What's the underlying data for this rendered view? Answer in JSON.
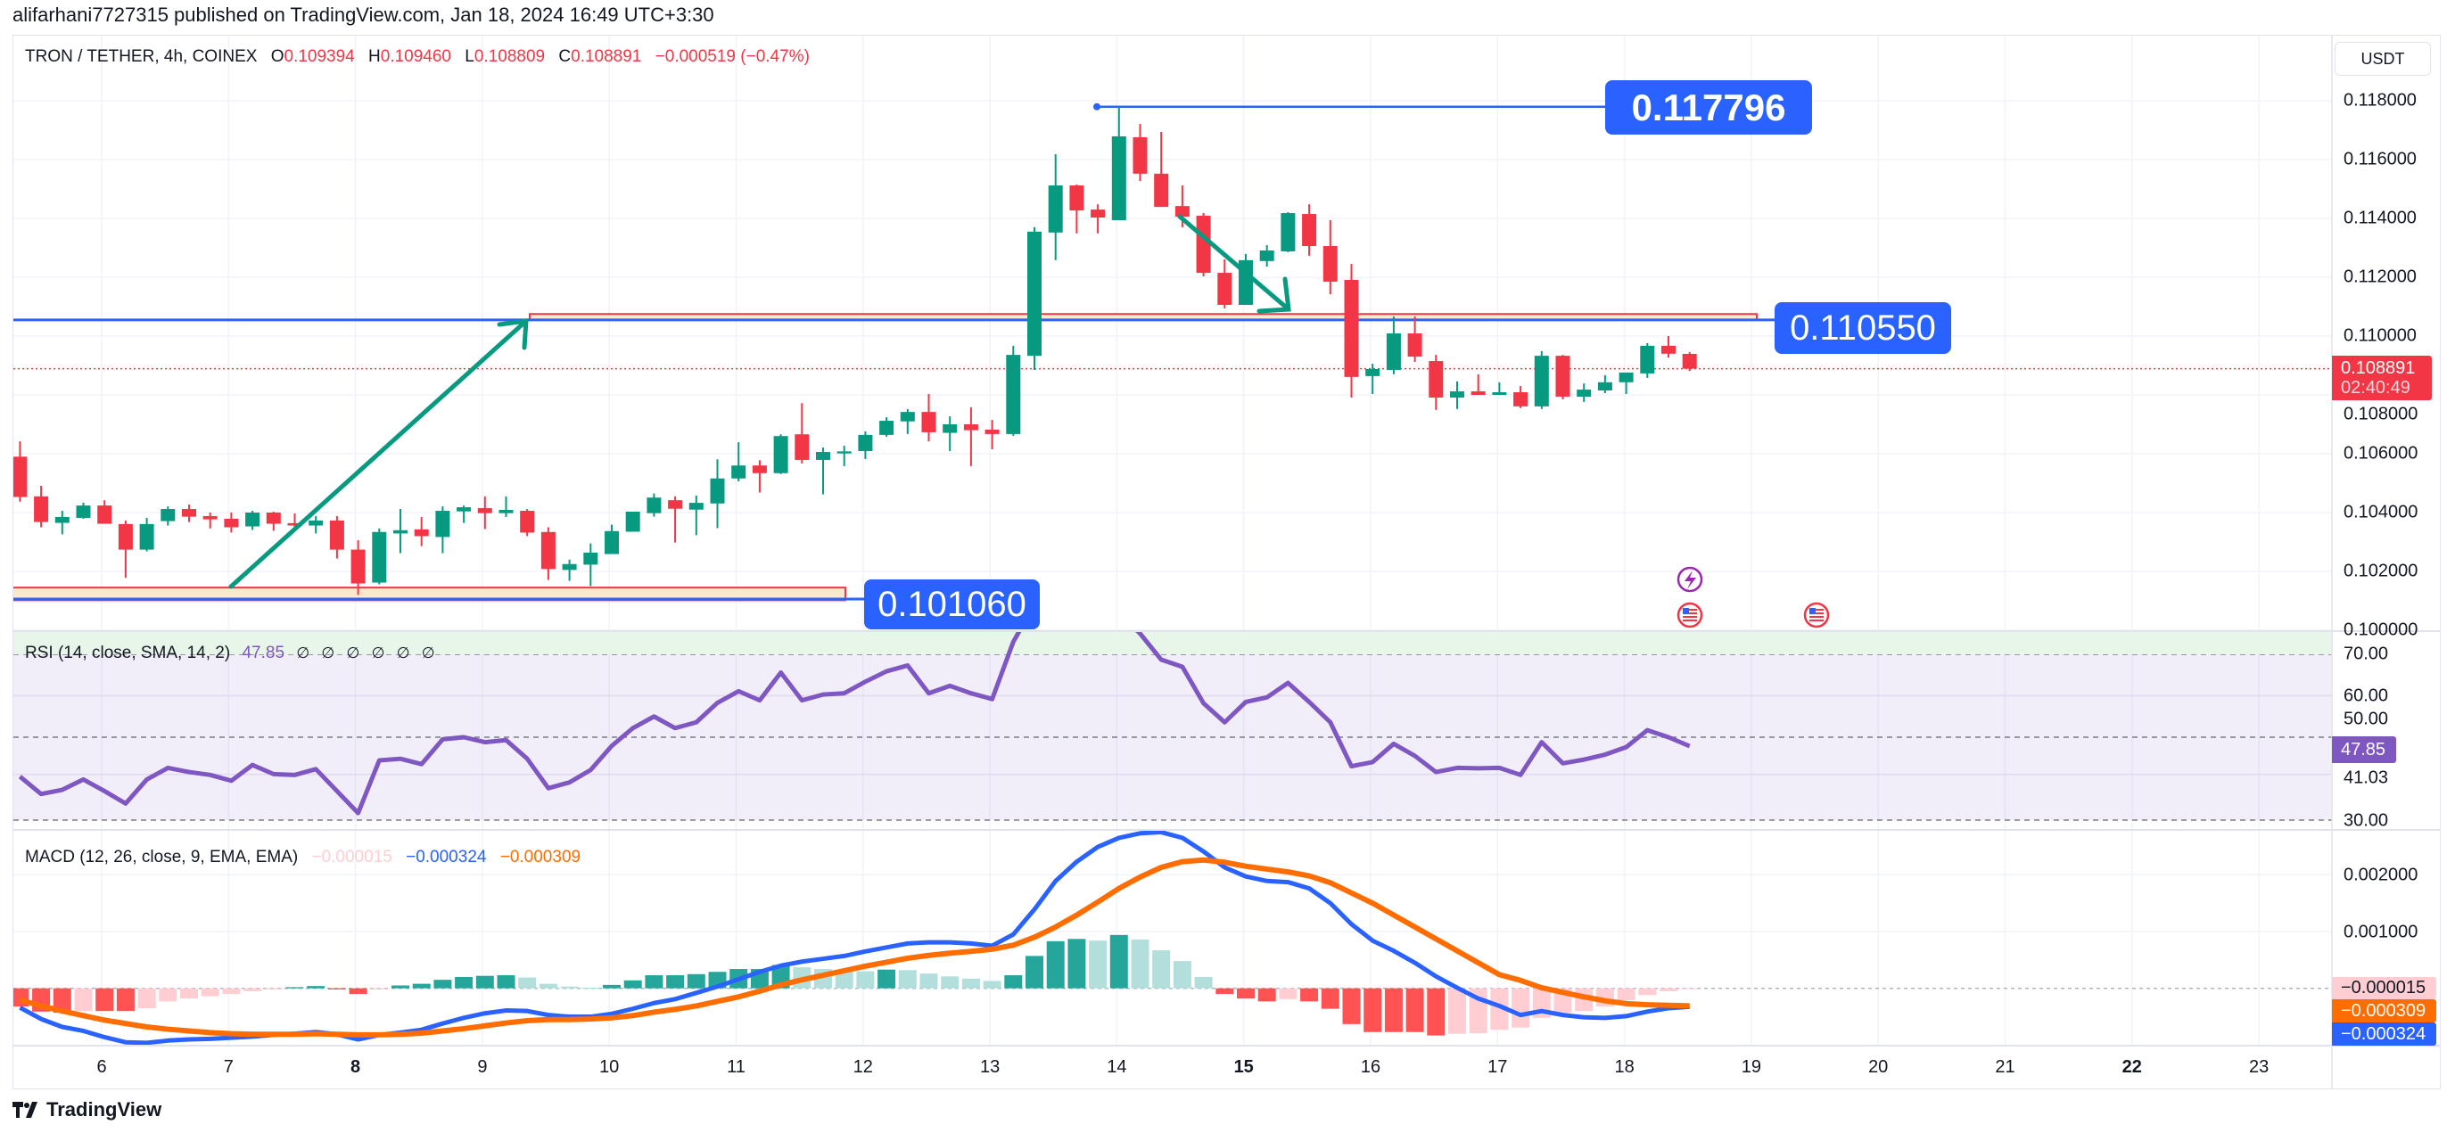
{
  "header": {
    "publisher": "alifarhani7727315 published on TradingView.com, Jan 18, 2024 16:49 UTC+3:30"
  },
  "legend": {
    "symbol": "TRON / TETHER, 4h, COINEX",
    "o_label": "O",
    "o": "0.109394",
    "h_label": "H",
    "h": "0.109460",
    "l_label": "L",
    "l": "0.108809",
    "c_label": "C",
    "c": "0.108891",
    "change": "−0.000519 (−0.47%)"
  },
  "currency_button": "USDT",
  "current_price": {
    "price": "0.108891",
    "countdown": "02:40:49",
    "color": "#f23645"
  },
  "annotations": {
    "high_label": "0.117796",
    "resistance_label": "0.110550",
    "support_label": "0.101060",
    "line_color": "#2962ff",
    "zone_fill": "#ffe9cc",
    "zone_border": "#f23645",
    "arrow_color": "#089981"
  },
  "rsi_legend": {
    "title": "RSI (14, close, SMA, 14, 2)",
    "value": "47.85",
    "na": [
      "∅",
      "∅",
      "∅",
      "∅",
      "∅",
      "∅"
    ]
  },
  "rsi_axis": {
    "ticks": [
      "70.00",
      "60.00",
      "50.00",
      "41.03",
      "30.00"
    ],
    "badge": "47.85",
    "badge_color": "#7e57c2"
  },
  "macd_legend": {
    "title": "MACD (12, 26, close, 9, EMA, EMA)",
    "hist": "−0.000015",
    "macd": "−0.000324",
    "signal": "−0.000309"
  },
  "macd_axis": {
    "ticks": [
      "0.002000",
      "0.001000"
    ],
    "badges": [
      "−0.000015",
      "−0.000309",
      "−0.000324"
    ]
  },
  "footer": {
    "brand": "TradingView"
  },
  "chart_data": {
    "type": "candlestick",
    "title": "TRON / TETHER, 4h, COINEX",
    "colors": {
      "up": "#089981",
      "down": "#f23645",
      "rsi": "#7e57c2",
      "macd": "#2962ff",
      "signal": "#ff6d00"
    },
    "price_axis": {
      "range": [
        0.0995,
        0.1192
      ],
      "ticks": [
        "0.118000",
        "0.116000",
        "0.114000",
        "0.112000",
        "0.110000",
        "0.108000",
        "0.106000",
        "0.104000",
        "0.102000",
        "0.100000"
      ]
    },
    "x_axis": {
      "labels": [
        {
          "day": 6,
          "text": "6"
        },
        {
          "day": 7,
          "text": "7"
        },
        {
          "day": 8,
          "text": "8",
          "emphasis": true
        },
        {
          "day": 9,
          "text": "9"
        },
        {
          "day": 10,
          "text": "10"
        },
        {
          "day": 11,
          "text": "11"
        },
        {
          "day": 12,
          "text": "12"
        },
        {
          "day": 13,
          "text": "13"
        },
        {
          "day": 14,
          "text": "14"
        },
        {
          "day": 15,
          "text": "15",
          "emphasis": true
        },
        {
          "day": 16,
          "text": "16"
        },
        {
          "day": 17,
          "text": "17"
        },
        {
          "day": 18,
          "text": "18"
        },
        {
          "day": 19,
          "text": "19"
        },
        {
          "day": 20,
          "text": "20"
        },
        {
          "day": 21,
          "text": "21"
        },
        {
          "day": 22,
          "text": "22",
          "emphasis": true
        },
        {
          "day": 23,
          "text": "23"
        }
      ]
    },
    "ohlc": [
      [
        0.1059,
        0.10642,
        0.10437,
        0.10453
      ],
      [
        0.10455,
        0.10491,
        0.1035,
        0.10368
      ],
      [
        0.10365,
        0.10406,
        0.10326,
        0.10385
      ],
      [
        0.10382,
        0.10434,
        0.10379,
        0.10424
      ],
      [
        0.10424,
        0.10442,
        0.10362,
        0.10362
      ],
      [
        0.10361,
        0.10373,
        0.10178,
        0.10274
      ],
      [
        0.10274,
        0.10382,
        0.10268,
        0.10361
      ],
      [
        0.10371,
        0.10421,
        0.10356,
        0.10412
      ],
      [
        0.10412,
        0.10427,
        0.10368,
        0.10386
      ],
      [
        0.10388,
        0.104,
        0.10346,
        0.10377
      ],
      [
        0.10379,
        0.104,
        0.10332,
        0.1035
      ],
      [
        0.10353,
        0.10406,
        0.10341,
        0.104
      ],
      [
        0.104,
        0.10403,
        0.10338,
        0.10362
      ],
      [
        0.10364,
        0.10397,
        0.10341,
        0.10356
      ],
      [
        0.10356,
        0.10388,
        0.10329,
        0.10373
      ],
      [
        0.10373,
        0.10388,
        0.10244,
        0.10274
      ],
      [
        0.10274,
        0.10306,
        0.1012,
        0.10159
      ],
      [
        0.10162,
        0.10346,
        0.10156,
        0.10334
      ],
      [
        0.10329,
        0.10412,
        0.10262,
        0.1034
      ],
      [
        0.10343,
        0.10385,
        0.10286,
        0.1032
      ],
      [
        0.10317,
        0.10421,
        0.10262,
        0.10406
      ],
      [
        0.10404,
        0.10424,
        0.10365,
        0.10418
      ],
      [
        0.10415,
        0.10455,
        0.10344,
        0.10398
      ],
      [
        0.10398,
        0.10455,
        0.10385,
        0.10409
      ],
      [
        0.10406,
        0.10412,
        0.1032,
        0.10332
      ],
      [
        0.10334,
        0.1035,
        0.10171,
        0.10208
      ],
      [
        0.10205,
        0.1024,
        0.10168,
        0.10225
      ],
      [
        0.10223,
        0.10295,
        0.1015,
        0.10264
      ],
      [
        0.10259,
        0.10359,
        0.10259,
        0.10337
      ],
      [
        0.10335,
        0.10403,
        0.10335,
        0.10403
      ],
      [
        0.10398,
        0.10465,
        0.10386,
        0.10451
      ],
      [
        0.10442,
        0.10455,
        0.10298,
        0.10413
      ],
      [
        0.1041,
        0.10458,
        0.10323,
        0.10433
      ],
      [
        0.10431,
        0.10581,
        0.10347,
        0.10516
      ],
      [
        0.10516,
        0.10639,
        0.10506,
        0.1056
      ],
      [
        0.1056,
        0.10578,
        0.10468,
        0.10534
      ],
      [
        0.10534,
        0.10666,
        0.10531,
        0.1066
      ],
      [
        0.10666,
        0.10772,
        0.10567,
        0.10579
      ],
      [
        0.10579,
        0.10621,
        0.10462,
        0.10606
      ],
      [
        0.10601,
        0.10627,
        0.10558,
        0.10608
      ],
      [
        0.10609,
        0.10676,
        0.10582,
        0.10664
      ],
      [
        0.10664,
        0.10724,
        0.10658,
        0.10712
      ],
      [
        0.1071,
        0.10752,
        0.10667,
        0.10742
      ],
      [
        0.10742,
        0.10803,
        0.10642,
        0.10673
      ],
      [
        0.10671,
        0.10727,
        0.10609,
        0.107
      ],
      [
        0.107,
        0.10758,
        0.10558,
        0.1068
      ],
      [
        0.10682,
        0.10715,
        0.10615,
        0.10667
      ],
      [
        0.10667,
        0.10967,
        0.10661,
        0.10936
      ],
      [
        0.10933,
        0.1137,
        0.10885,
        0.11355
      ],
      [
        0.11352,
        0.11618,
        0.11258,
        0.11512
      ],
      [
        0.11512,
        0.11515,
        0.11349,
        0.11427
      ],
      [
        0.1143,
        0.11448,
        0.11349,
        0.11403
      ],
      [
        0.11394,
        0.117796,
        0.11394,
        0.11679
      ],
      [
        0.11676,
        0.11721,
        0.11527,
        0.11552
      ],
      [
        0.11552,
        0.11694,
        0.11439,
        0.11439
      ],
      [
        0.11442,
        0.11512,
        0.1137,
        0.11406
      ],
      [
        0.11409,
        0.11418,
        0.11203,
        0.11215
      ],
      [
        0.11215,
        0.11261,
        0.11094,
        0.11106
      ],
      [
        0.11106,
        0.11279,
        0.11106,
        0.11258
      ],
      [
        0.11255,
        0.11309,
        0.11236,
        0.11291
      ],
      [
        0.11288,
        0.11421,
        0.11285,
        0.11418
      ],
      [
        0.11415,
        0.11448,
        0.11273,
        0.11306
      ],
      [
        0.11306,
        0.11394,
        0.11142,
        0.11185
      ],
      [
        0.11191,
        0.11245,
        0.10791,
        0.10861
      ],
      [
        0.10864,
        0.10906,
        0.10803,
        0.10888
      ],
      [
        0.10885,
        0.11067,
        0.1087,
        0.11009
      ],
      [
        0.11009,
        0.11067,
        0.10912,
        0.1093
      ],
      [
        0.10915,
        0.10936,
        0.10749,
        0.10791
      ],
      [
        0.10791,
        0.10846,
        0.10752,
        0.10812
      ],
      [
        0.10812,
        0.1087,
        0.108,
        0.108
      ],
      [
        0.108,
        0.10843,
        0.108,
        0.10809
      ],
      [
        0.10809,
        0.1083,
        0.10755,
        0.10761
      ],
      [
        0.10761,
        0.10949,
        0.10752,
        0.10933
      ],
      [
        0.10933,
        0.10936,
        0.10785,
        0.10794
      ],
      [
        0.10794,
        0.10839,
        0.10776,
        0.10818
      ],
      [
        0.10815,
        0.10867,
        0.10806,
        0.10843
      ],
      [
        0.10843,
        0.10876,
        0.10803,
        0.10876
      ],
      [
        0.10873,
        0.10976,
        0.10858,
        0.10967
      ],
      [
        0.10967,
        0.11,
        0.10927,
        0.1094
      ],
      [
        0.109394,
        0.10946,
        0.108809,
        0.108891
      ]
    ],
    "levels": {
      "high": 0.117796,
      "resistance": 0.11055,
      "support": 0.10106,
      "current": 0.108891,
      "resistance_zone": [
        0.11055,
        0.11075
      ],
      "support_zone": [
        0.10102,
        0.10145
      ]
    },
    "rsi": {
      "range": [
        30,
        70
      ],
      "bands": [
        70,
        50,
        30
      ],
      "values": [
        40.5,
        36.3,
        37.3,
        39.8,
        37.0,
        34.0,
        39.8,
        42.6,
        41.6,
        40.9,
        39.5,
        43.3,
        41.1,
        40.9,
        42.3,
        37.0,
        31.7,
        44.4,
        44.8,
        43.5,
        49.5,
        50.0,
        48.8,
        49.3,
        44.8,
        37.7,
        39.1,
        42.1,
        47.9,
        52.2,
        55.0,
        52.2,
        53.6,
        58.3,
        61.1,
        58.9,
        65.6,
        58.9,
        60.3,
        60.6,
        63.4,
        65.9,
        67.3,
        60.6,
        62.4,
        60.6,
        59.2,
        73.0,
        82.0,
        85.0,
        84.0,
        82.0,
        80.0,
        75.0,
        68.7,
        67.0,
        58.2,
        53.6,
        58.5,
        59.6,
        63.1,
        58.5,
        53.6,
        43.0,
        44.0,
        48.4,
        45.5,
        41.6,
        42.6,
        42.5,
        42.6,
        40.9,
        48.8,
        43.7,
        44.6,
        45.8,
        47.6,
        51.7,
        50.0,
        47.85
      ]
    },
    "macd": {
      "hist": [
        -0.00032,
        -0.00041,
        -0.00043,
        -0.0004,
        -0.0004,
        -0.0004,
        -0.00035,
        -0.00023,
        -0.00018,
        -0.00014,
        -0.0001,
        -5e-05,
        -2e-05,
        2e-05,
        4e-05,
        -2e-05,
        -0.0001,
        -2e-05,
        5e-05,
        8e-05,
        0.00015,
        0.0002,
        0.00022,
        0.00023,
        0.00019,
        8e-05,
        3e-05,
        1e-05,
        6e-05,
        0.00014,
        0.00023,
        0.00023,
        0.00025,
        0.00029,
        0.00034,
        0.00034,
        0.00041,
        0.00037,
        0.00034,
        0.00031,
        0.0003,
        0.00033,
        0.00032,
        0.00026,
        0.00021,
        0.00017,
        0.00013,
        0.00023,
        0.00057,
        0.00083,
        0.00087,
        0.00084,
        0.00094,
        0.00086,
        0.00067,
        0.00048,
        0.0002,
        -0.0001,
        -0.00018,
        -0.00023,
        -0.00019,
        -0.00023,
        -0.00036,
        -0.00063,
        -0.00077,
        -0.00077,
        -0.00077,
        -0.00083,
        -0.0008,
        -0.00079,
        -0.00073,
        -0.00069,
        -0.00052,
        -0.00043,
        -0.0004,
        -0.00032,
        -0.00021,
        -0.00012,
        -5e-05,
        -1.5e-05
      ],
      "macd": [
        -0.00034,
        -0.00054,
        -0.00068,
        -0.00075,
        -0.00086,
        -0.00095,
        -0.00096,
        -0.00092,
        -0.0009,
        -0.00089,
        -0.00087,
        -0.00085,
        -0.00082,
        -0.0008,
        -0.00077,
        -0.00081,
        -0.0009,
        -0.00082,
        -0.00078,
        -0.00073,
        -0.00062,
        -0.00052,
        -0.00044,
        -0.00039,
        -0.0004,
        -0.00047,
        -0.0005,
        -0.0005,
        -0.00045,
        -0.00036,
        -0.00026,
        -0.00019,
        -8e-05,
        3e-05,
        0.00016,
        0.00029,
        0.0004,
        0.00047,
        0.00052,
        0.00057,
        0.00065,
        0.00072,
        0.00079,
        0.00081,
        0.00081,
        0.00079,
        0.00075,
        0.00095,
        0.00139,
        0.00189,
        0.00223,
        0.00249,
        0.00265,
        0.00273,
        0.00275,
        0.00265,
        0.00241,
        0.00213,
        0.00197,
        0.00189,
        0.00187,
        0.00176,
        0.0015,
        0.00113,
        0.00084,
        0.00066,
        0.00045,
        0.00021,
        1e-05,
        -0.00018,
        -0.00031,
        -0.00047,
        -0.0004,
        -0.00047,
        -0.00051,
        -0.00052,
        -0.00049,
        -0.00041,
        -0.00035,
        -0.000324
      ],
      "signal": [
        -0.0002,
        -0.00031,
        -0.0004,
        -0.00048,
        -0.00056,
        -0.00062,
        -0.00068,
        -0.00072,
        -0.00075,
        -0.00078,
        -0.0008,
        -0.00081,
        -0.00081,
        -0.00081,
        -0.0008,
        -0.00081,
        -0.00082,
        -0.00082,
        -0.00081,
        -0.00079,
        -0.00075,
        -0.00071,
        -0.00066,
        -0.00061,
        -0.00057,
        -0.00055,
        -0.00055,
        -0.00054,
        -0.00052,
        -0.00048,
        -0.00042,
        -0.00037,
        -0.00031,
        -0.00023,
        -0.00015,
        -5e-05,
        6e-05,
        0.00015,
        0.00023,
        0.00031,
        0.00039,
        0.00046,
        0.00053,
        0.00058,
        0.00062,
        0.00065,
        0.00069,
        0.00076,
        0.0009,
        0.00108,
        0.00129,
        0.00152,
        0.00176,
        0.00196,
        0.00213,
        0.00223,
        0.00226,
        0.00222,
        0.00215,
        0.0021,
        0.00205,
        0.00198,
        0.00186,
        0.00168,
        0.0015,
        0.00129,
        0.00108,
        0.00087,
        0.00066,
        0.00045,
        0.00024,
        0.00014,
        1e-05,
        -7e-05,
        -0.00015,
        -0.00022,
        -0.00027,
        -0.00029,
        -0.0003,
        -0.000309
      ]
    }
  }
}
